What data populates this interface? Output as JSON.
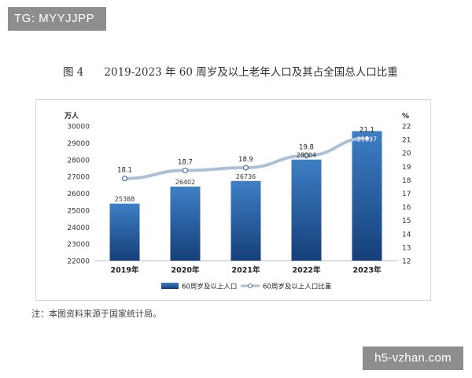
{
  "watermarks": {
    "top_left": "TG: MYYJJPP",
    "bottom_right": "h5-vzhan.com"
  },
  "figure": {
    "number": "图 4",
    "title": "2019-2023 年 60 周岁及以上老年人口及其占全国总人口比重",
    "note": "注：本图资料来源于国家统计局。"
  },
  "colors": {
    "bar_top": "#3e7fc4",
    "bar_bottom": "#153f7a",
    "line": "#aebfd8",
    "marker": "#4a6fa5"
  },
  "chart_data": {
    "type": "bar",
    "categories": [
      "2019年",
      "2020年",
      "2021年",
      "2022年",
      "2023年"
    ],
    "series": [
      {
        "name": "60周岁及以上人口",
        "type": "bar",
        "axis": "left",
        "values": [
          25388,
          26402,
          26736,
          28004,
          29697
        ],
        "labels": [
          "25388",
          "26402",
          "26736",
          "28004",
          "29697"
        ]
      },
      {
        "name": "60周岁及以上人口比重",
        "type": "line",
        "axis": "right",
        "values": [
          18.1,
          18.7,
          18.9,
          19.8,
          21.1
        ],
        "labels": [
          "18.1",
          "18.7",
          "18.9",
          "19.8",
          "21.1"
        ]
      }
    ],
    "left_axis": {
      "unit": "万人",
      "min": 22000,
      "max": 30000,
      "step": 1000,
      "ticks": [
        "22000",
        "23000",
        "24000",
        "25000",
        "26000",
        "27000",
        "28000",
        "29000",
        "30000"
      ]
    },
    "right_axis": {
      "unit": "%",
      "min": 12,
      "max": 22,
      "step": 1,
      "ticks": [
        "12",
        "13",
        "14",
        "15",
        "16",
        "17",
        "18",
        "19",
        "20",
        "21",
        "22"
      ]
    },
    "legend_position": "bottom-center",
    "grid": false
  }
}
